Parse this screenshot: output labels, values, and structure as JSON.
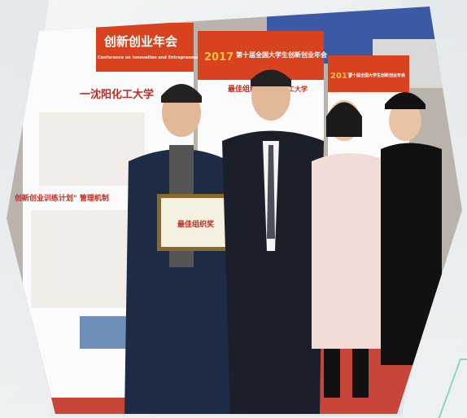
{
  "scene": {
    "description_labels": {
      "banner_left_top": "创新创业年会",
      "banner_left_sub": "Conference on Innovation and Entrepreneurship",
      "banner_mid_top": "第十届全国大学生创新创业年会",
      "banner_mid_year": "2017",
      "banner_right_top": "第十届全国大学生创新创业年会",
      "banner_right_year": "2017",
      "left_board_title": "一沈阳化工大学",
      "left_board_section": "创新创业训练计划\" 管理机制",
      "mid_board_title": "最佳组织奖",
      "mid_board_school": "沈阳化工大学",
      "award_plaque_text": "最佳组织奖"
    }
  },
  "colors": {
    "banner_red": "#d8421f",
    "seats_blue": "#3a5aa6",
    "floor_red": "#c8453a"
  }
}
